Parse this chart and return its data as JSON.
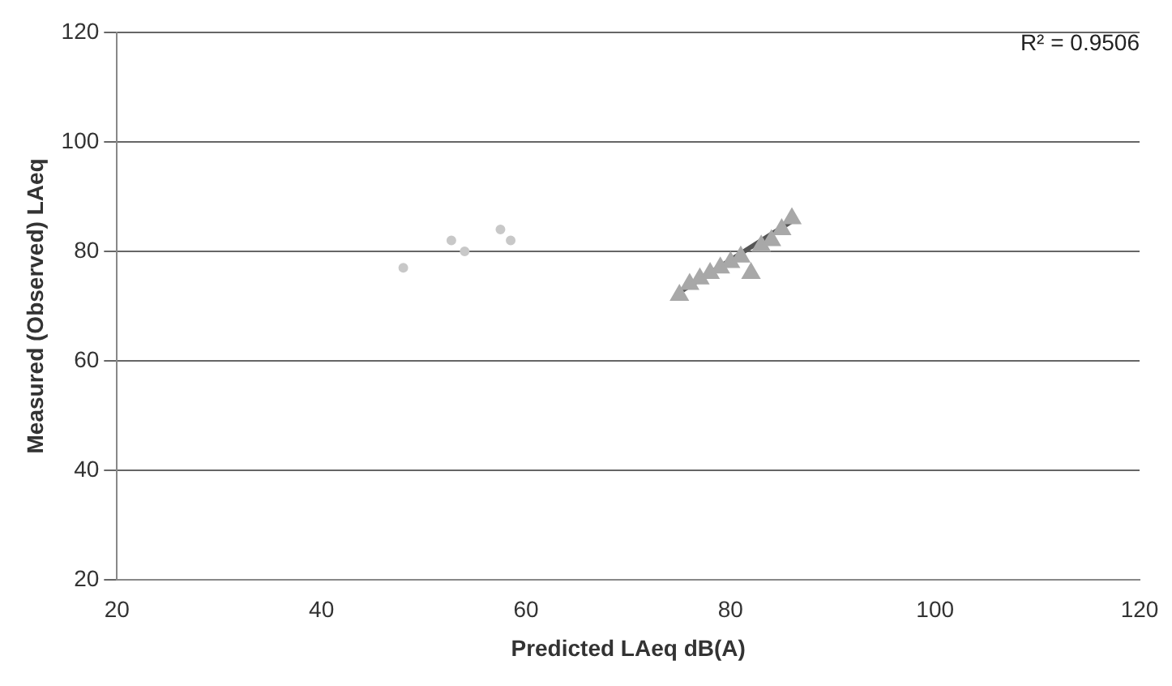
{
  "chart_data": {
    "type": "scatter",
    "xlabel": "Predicted LAeq dB(A)",
    "ylabel": "Measured (Observed) LAeq",
    "xlim": [
      20,
      120
    ],
    "xticks": [
      20,
      40,
      60,
      80,
      100,
      120
    ],
    "ylim": [
      20,
      120
    ],
    "yticks": [
      20,
      40,
      60,
      80,
      100,
      120
    ],
    "grid": "y",
    "legend": false,
    "marker": "triangle",
    "series": [
      {
        "color": "#a8a8a8",
        "x": [
          75,
          76,
          77,
          78,
          79,
          80,
          81,
          82,
          83,
          84,
          85,
          86
        ],
        "values": [
          72,
          74,
          75,
          76,
          77,
          78,
          79,
          76,
          81,
          82,
          84,
          86
        ]
      },
      {
        "color": "#c8c8c8",
        "marker": "circle",
        "x": [
          48,
          52.7,
          54,
          57.5,
          58.5
        ],
        "values": [
          77,
          82,
          80,
          84,
          82
        ]
      },
      {
        "type": "line",
        "color": "#555555",
        "marker": "none",
        "x": [
          75,
          86
        ],
        "values": [
          72.5,
          85.5
        ]
      }
    ],
    "annotations": [
      "R² = 0.9506"
    ]
  }
}
